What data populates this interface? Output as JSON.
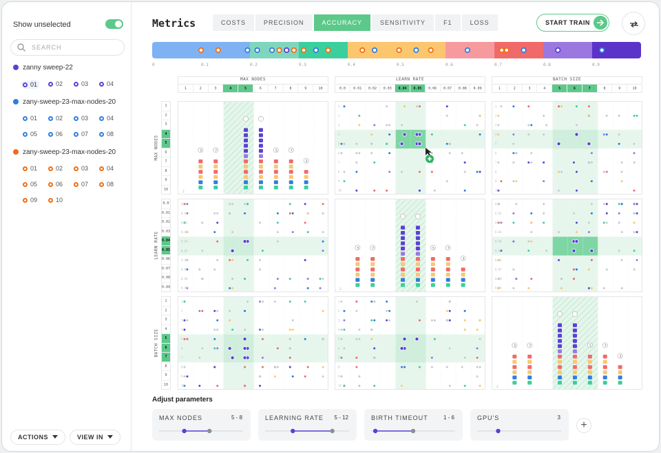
{
  "sidebar": {
    "show_unselected": "Show unselected",
    "search_placeholder": "SEARCH",
    "groups": [
      {
        "name": "zanny sweep-22",
        "color": "#5b3fd6",
        "runs": [
          "01",
          "02",
          "03",
          "04"
        ]
      },
      {
        "name": "zany-sweep-23-max-nodes-20",
        "color": "#2f7de0",
        "runs": [
          "01",
          "02",
          "03",
          "04",
          "05",
          "06",
          "07",
          "08"
        ]
      },
      {
        "name": "zany-sweep-23-max-nodes-20",
        "color": "#f06e12",
        "runs": [
          "01",
          "02",
          "03",
          "04",
          "05",
          "06",
          "07",
          "08",
          "09",
          "10"
        ]
      }
    ],
    "actions_label": "ACTIONS",
    "view_in_label": "VIEW IN"
  },
  "header": {
    "title": "Metrics",
    "tabs": [
      {
        "label": "COSTS"
      },
      {
        "label": "PRECISION"
      },
      {
        "label": "ACCURACY"
      },
      {
        "label": "SENSITIVITY"
      },
      {
        "label": "F1"
      },
      {
        "label": "LOSS"
      }
    ],
    "active_tab": "ACCURACY",
    "start_train_label": "START TRAIN"
  },
  "metric_bar": {
    "ticks": [
      "0",
      "0.1",
      "0.2",
      "0.3",
      "0.4",
      "0.5",
      "0.6",
      "0.7",
      "0.8",
      "0.9"
    ],
    "segments": [
      {
        "from": 0.0,
        "to": 0.2,
        "color": "#7fb2f2"
      },
      {
        "from": 0.2,
        "to": 0.3,
        "color": "#7fd6bd"
      },
      {
        "from": 0.3,
        "to": 0.4,
        "color": "#3ccf9e"
      },
      {
        "from": 0.4,
        "to": 0.6,
        "color": "#fbc66e"
      },
      {
        "from": 0.6,
        "to": 0.7,
        "color": "#f79aa0"
      },
      {
        "from": 0.7,
        "to": 0.8,
        "color": "#f06a6a"
      },
      {
        "from": 0.8,
        "to": 0.9,
        "color": "#9a78e0"
      },
      {
        "from": 0.9,
        "to": 1.0,
        "color": "#5b33c9"
      }
    ],
    "markers": [
      {
        "v": 0.1,
        "c": "#f06e12"
      },
      {
        "v": 0.135,
        "c": "#f06e12"
      },
      {
        "v": 0.195,
        "c": "#2f7de0"
      },
      {
        "v": 0.215,
        "c": "#2f7de0"
      },
      {
        "v": 0.245,
        "c": "#2f7de0"
      },
      {
        "v": 0.26,
        "c": "#f06e12"
      },
      {
        "v": 0.275,
        "c": "#5b3fd6"
      },
      {
        "v": 0.29,
        "c": "#f06e12"
      },
      {
        "v": 0.31,
        "c": "#f06e12"
      },
      {
        "v": 0.335,
        "c": "#2f7de0"
      },
      {
        "v": 0.36,
        "c": "#f06e12"
      },
      {
        "v": 0.43,
        "c": "#f06e12"
      },
      {
        "v": 0.455,
        "c": "#2f7de0"
      },
      {
        "v": 0.505,
        "c": "#f06e12"
      },
      {
        "v": 0.54,
        "c": "#2f7de0"
      },
      {
        "v": 0.57,
        "c": "#f06e12"
      },
      {
        "v": 0.645,
        "c": "#2f7de0"
      },
      {
        "v": 0.715,
        "c": "#f06e12"
      },
      {
        "v": 0.725,
        "c": "#f06e12"
      },
      {
        "v": 0.76,
        "c": "#2f7de0"
      },
      {
        "v": 0.83,
        "c": "#5b3fd6"
      },
      {
        "v": 0.92,
        "c": "#2f7de0"
      }
    ]
  },
  "grid": {
    "params": [
      {
        "name": "MAX NODES",
        "values": [
          "1",
          "2",
          "3",
          "4",
          "5",
          "6",
          "7",
          "8",
          "9",
          "10"
        ],
        "selected": [
          3,
          4
        ]
      },
      {
        "name": "LEARN RATE",
        "values": [
          "0.0",
          "0.01",
          "0.02",
          "0.03",
          "0.04",
          "0.05",
          "0.06",
          "0.07",
          "0.08",
          "0.09"
        ],
        "selected": [
          4,
          5
        ]
      },
      {
        "name": "BATCH SIZE",
        "values": [
          "1",
          "2",
          "3",
          "4",
          "5",
          "6",
          "7",
          "8",
          "9",
          "10"
        ],
        "selected": [
          4,
          5,
          6
        ]
      }
    ],
    "histogram_counts": [
      "5",
      "7",
      "5",
      "7",
      "3"
    ],
    "corner_label": "2"
  },
  "adjust": {
    "title": "Adjust parameters",
    "params": [
      {
        "name": "MAX NODES",
        "value": "5 - 8",
        "lo": 0.3,
        "hi": 0.6
      },
      {
        "name": "LEARNING RATE",
        "value": "5 - 12",
        "lo": 0.33,
        "hi": 0.8
      },
      {
        "name": "BIRTH TIMEOUT",
        "value": "1 - 6",
        "lo": 0.05,
        "hi": 0.5
      },
      {
        "name": "GPU'S",
        "value": "3",
        "lo": 0.25,
        "hi": null
      }
    ]
  }
}
